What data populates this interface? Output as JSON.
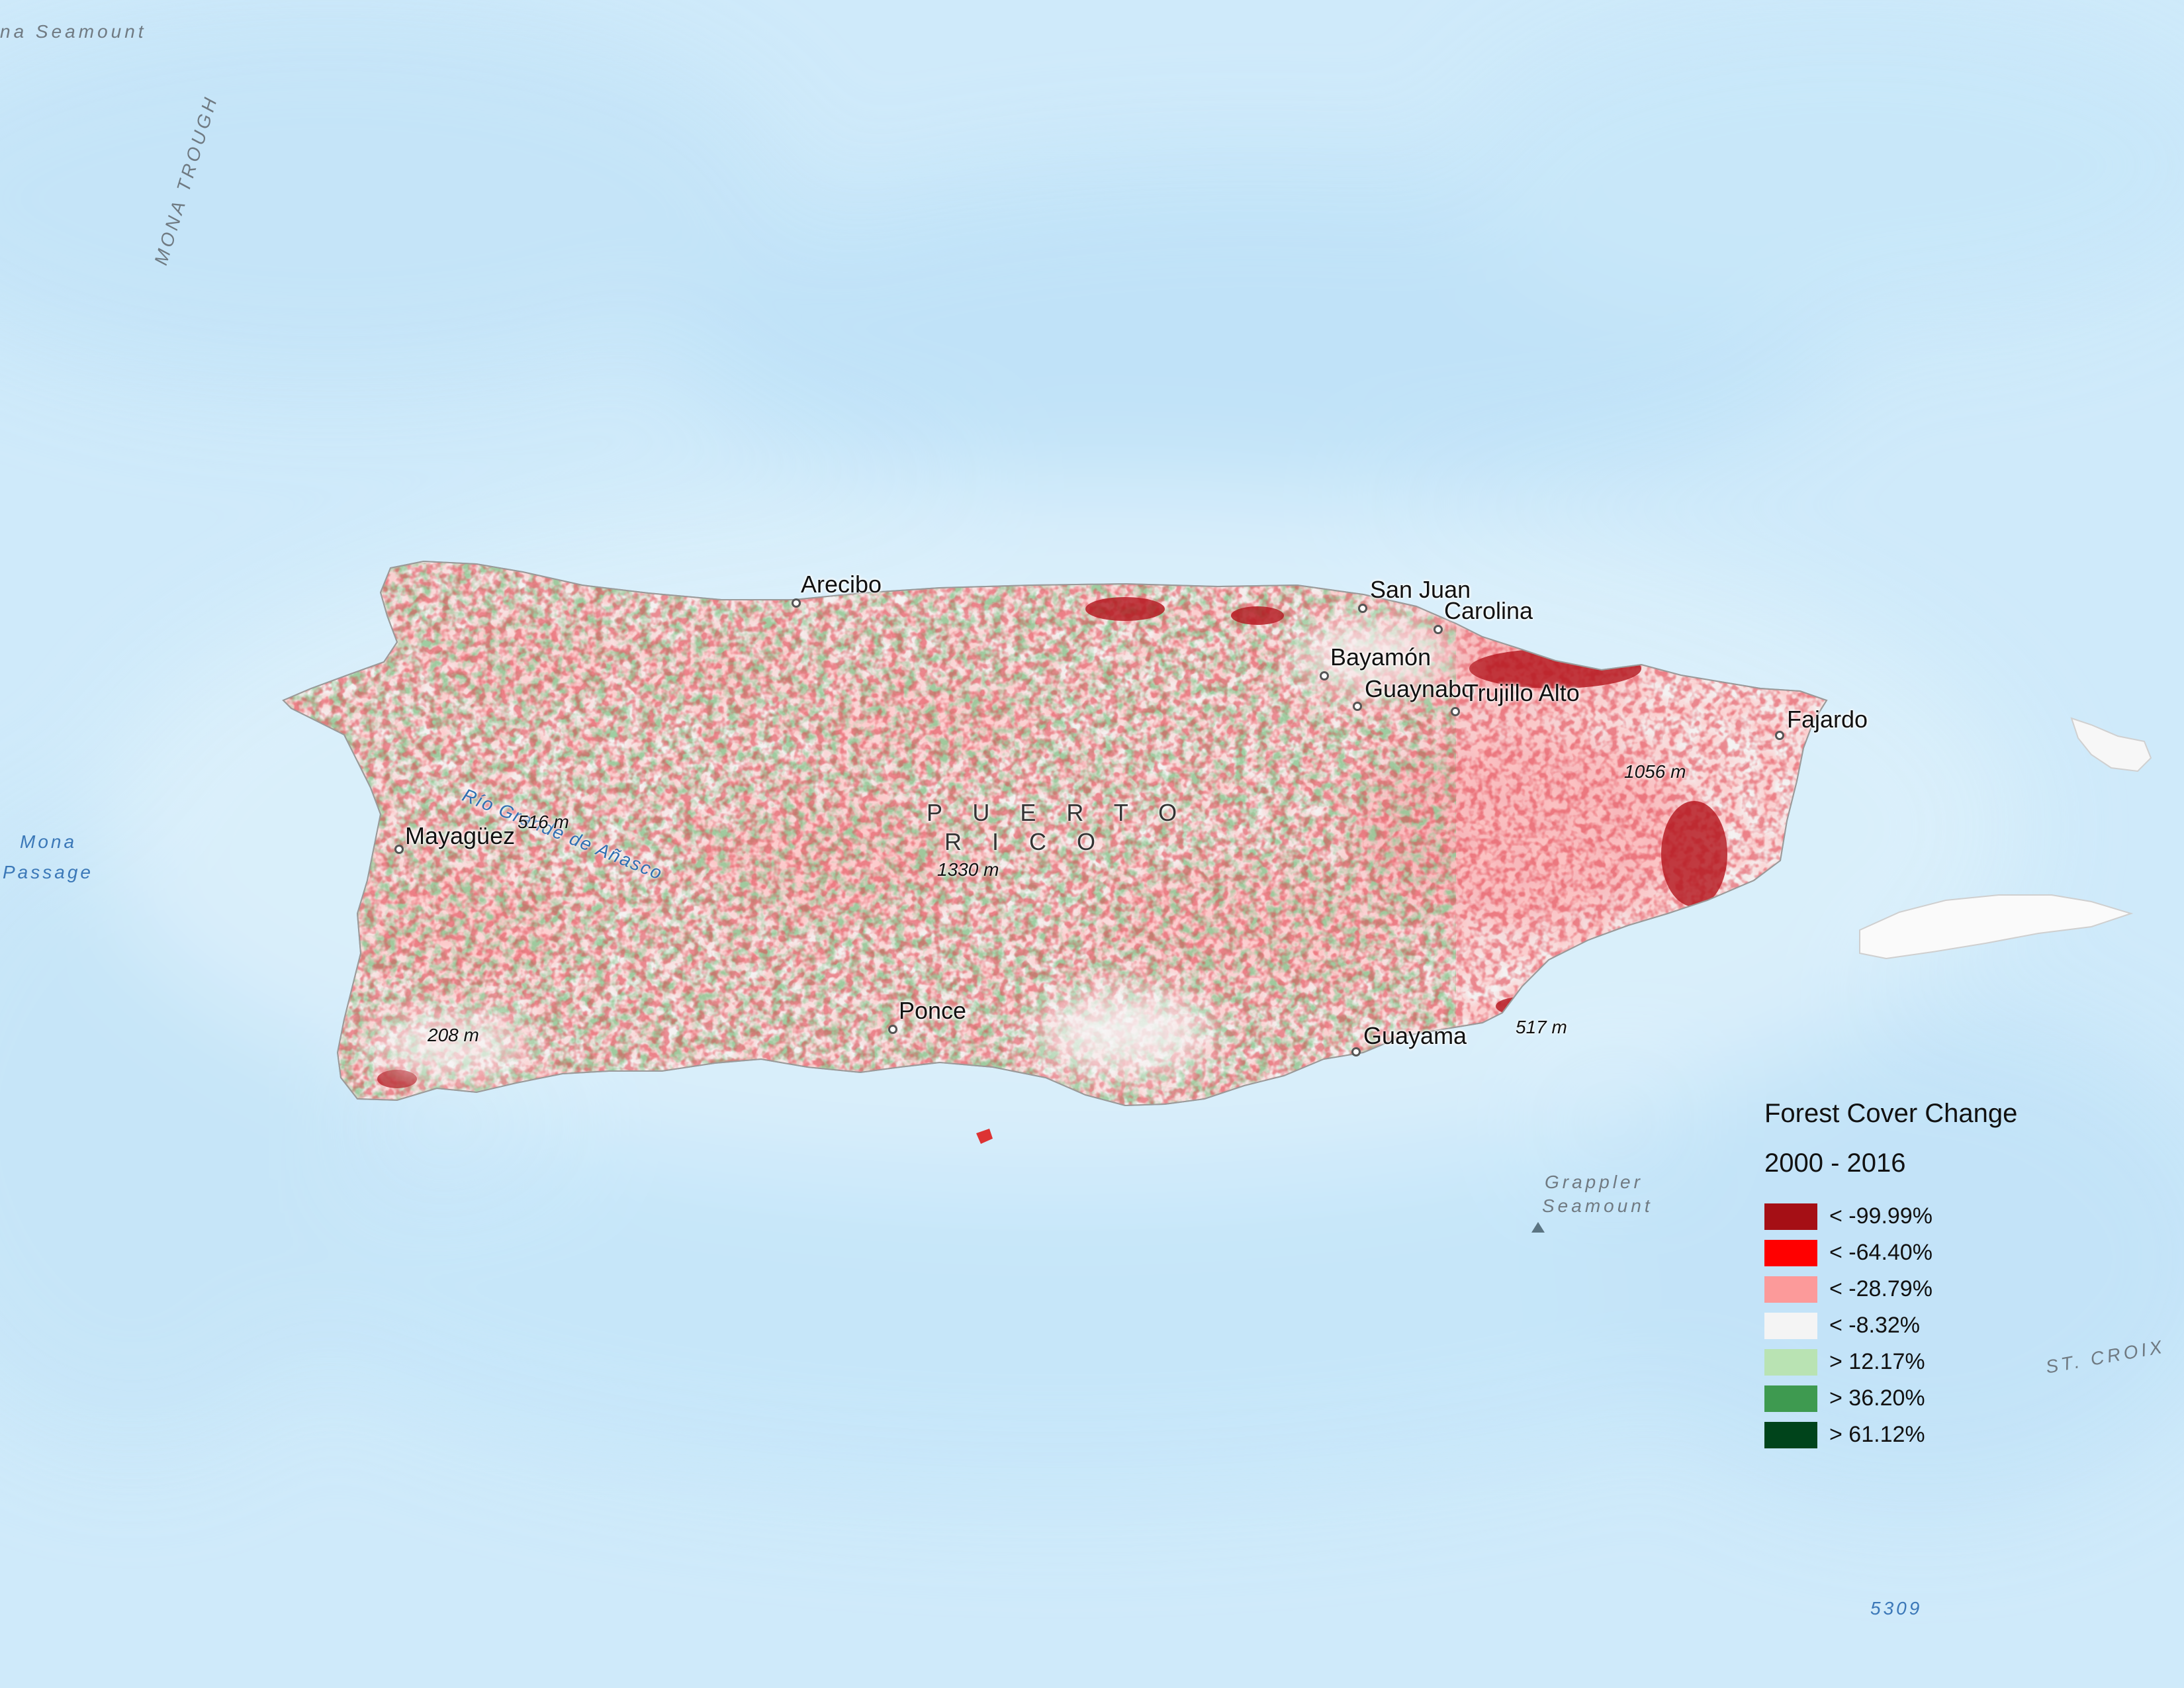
{
  "map": {
    "cities": [
      {
        "id": "arecibo",
        "name": "Arecibo"
      },
      {
        "id": "san-juan",
        "name": "San Juan"
      },
      {
        "id": "carolina",
        "name": "Carolina"
      },
      {
        "id": "bayamon",
        "name": "Bayamón"
      },
      {
        "id": "guaynabo",
        "name": "Guaynabo"
      },
      {
        "id": "trujillo-alto",
        "name": "Trujillo Alto"
      },
      {
        "id": "fajardo",
        "name": "Fajardo"
      },
      {
        "id": "mayaguez",
        "name": "Mayagüez"
      },
      {
        "id": "ponce",
        "name": "Ponce"
      },
      {
        "id": "guayama",
        "name": "Guayama"
      }
    ],
    "elevations": [
      "516 m",
      "1330 m",
      "1056 m",
      "208 m",
      "517 m"
    ],
    "country_line1": "P U E R T O",
    "country_line2": "R I C O",
    "river": "Río Grande de Añasco",
    "sea_labels": {
      "mona_passage_1": "Mona",
      "mona_passage_2": "Passage",
      "depth": "5309"
    },
    "undersea_labels": {
      "seamount_top": "na Seamount",
      "mona_trough": "MONA TROUGH",
      "grappler_1": "Grappler",
      "grappler_2": "Seamount",
      "st_croix": "ST. CROIX"
    }
  },
  "legend": {
    "title": "Forest Cover Change",
    "subtitle": "2000 - 2016",
    "items": [
      {
        "label": "< -99.99%",
        "color": "#a50f15"
      },
      {
        "label": "< -64.40%",
        "color": "#ff0000"
      },
      {
        "label": "< -28.79%",
        "color": "#fc9a9a"
      },
      {
        "label": "< -8.32%",
        "color": "#f4f4f4"
      },
      {
        "label": "> 12.17%",
        "color": "#b9e3b3"
      },
      {
        "label": "> 36.20%",
        "color": "#3e9a50"
      },
      {
        "label": "> 61.12%",
        "color": "#00441b"
      }
    ]
  }
}
